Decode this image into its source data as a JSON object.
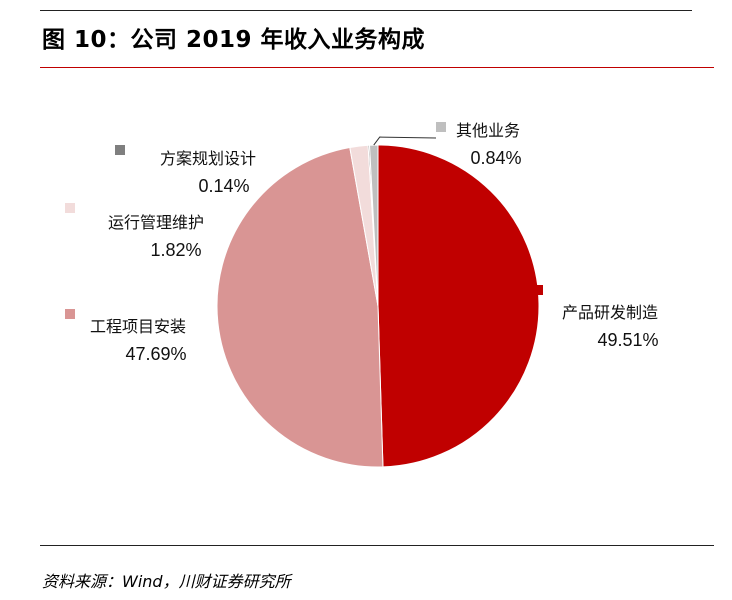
{
  "header": {
    "title": "图 10：公司 2019 年收入业务构成"
  },
  "footer": {
    "source": "资料来源：Wind，川财证券研究所"
  },
  "chart_data": {
    "type": "pie",
    "slices": [
      {
        "name": "产品研发制造",
        "value": 49.51,
        "label": "49.51%",
        "color": "#c00000"
      },
      {
        "name": "工程项目安装",
        "value": 47.69,
        "label": "47.69%",
        "color": "#d99594"
      },
      {
        "name": "运行管理维护",
        "value": 1.82,
        "label": "1.82%",
        "color": "#f2dcdb"
      },
      {
        "name": "方案规划设计",
        "value": 0.14,
        "label": "0.14%",
        "color": "#7f7f7f"
      },
      {
        "name": "其他业务",
        "value": 0.84,
        "label": "0.84%",
        "color": "#bfbfbf"
      }
    ]
  }
}
